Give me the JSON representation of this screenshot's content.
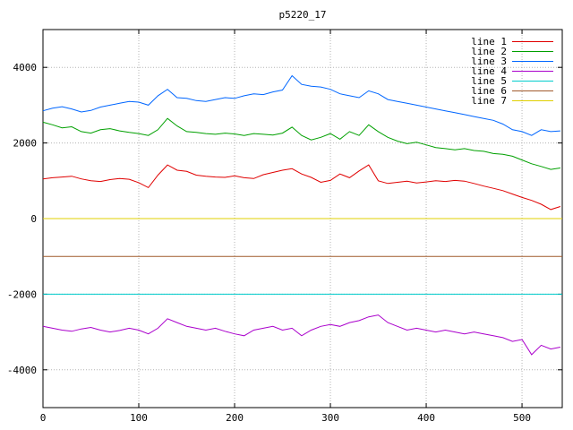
{
  "chart_data": {
    "type": "line",
    "title": "p5220_17",
    "xlabel": "",
    "ylabel": "",
    "xlim": [
      0,
      542
    ],
    "ylim": [
      -5000,
      5000
    ],
    "xticks": [
      0,
      100,
      200,
      300,
      400,
      500
    ],
    "yticks": [
      -4000,
      -2000,
      0,
      2000,
      4000
    ],
    "grid": true,
    "legend_position": "top-right-inside",
    "background_color": "#ffffff",
    "border_color": "#000000",
    "grid_color": "#b4b4b4",
    "x_start": 0,
    "x_step": 10,
    "series": [
      {
        "name": "line 1",
        "color": "#e00000",
        "values": [
          1050,
          1080,
          1100,
          1120,
          1050,
          1000,
          980,
          1030,
          1060,
          1040,
          950,
          820,
          1150,
          1420,
          1280,
          1250,
          1150,
          1120,
          1100,
          1090,
          1130,
          1080,
          1060,
          1160,
          1220,
          1280,
          1320,
          1180,
          1090,
          960,
          1010,
          1180,
          1080,
          1260,
          1420,
          1000,
          930,
          960,
          990,
          940,
          970,
          1000,
          980,
          1010,
          990,
          930,
          860,
          800,
          740,
          650,
          560,
          480,
          380,
          240,
          320
        ]
      },
      {
        "name": "line 2",
        "color": "#00a000",
        "values": [
          2550,
          2480,
          2400,
          2430,
          2300,
          2260,
          2350,
          2380,
          2320,
          2280,
          2250,
          2200,
          2350,
          2650,
          2450,
          2300,
          2280,
          2250,
          2230,
          2260,
          2240,
          2200,
          2250,
          2230,
          2210,
          2260,
          2420,
          2200,
          2080,
          2150,
          2250,
          2100,
          2300,
          2200,
          2480,
          2300,
          2150,
          2050,
          1980,
          2020,
          1950,
          1880,
          1850,
          1820,
          1850,
          1800,
          1780,
          1720,
          1700,
          1650,
          1550,
          1450,
          1380,
          1300,
          1340
        ]
      },
      {
        "name": "line 3",
        "color": "#0066ff",
        "values": [
          2850,
          2920,
          2960,
          2900,
          2820,
          2860,
          2950,
          3000,
          3050,
          3100,
          3080,
          3000,
          3250,
          3420,
          3200,
          3180,
          3120,
          3100,
          3150,
          3200,
          3180,
          3250,
          3300,
          3280,
          3350,
          3400,
          3780,
          3550,
          3500,
          3480,
          3420,
          3300,
          3250,
          3200,
          3380,
          3300,
          3150,
          3100,
          3050,
          3000,
          2950,
          2900,
          2850,
          2800,
          2750,
          2700,
          2650,
          2600,
          2500,
          2350,
          2300,
          2200,
          2350,
          2300,
          2320
        ]
      },
      {
        "name": "line 4",
        "color": "#aa00cc",
        "values": [
          -2850,
          -2900,
          -2950,
          -2980,
          -2920,
          -2880,
          -2950,
          -3000,
          -2960,
          -2900,
          -2950,
          -3050,
          -2900,
          -2650,
          -2750,
          -2850,
          -2900,
          -2950,
          -2900,
          -2980,
          -3050,
          -3100,
          -2950,
          -2900,
          -2850,
          -2950,
          -2900,
          -3100,
          -2950,
          -2850,
          -2800,
          -2850,
          -2750,
          -2700,
          -2600,
          -2550,
          -2750,
          -2850,
          -2950,
          -2900,
          -2950,
          -3000,
          -2950,
          -3000,
          -3050,
          -3000,
          -3050,
          -3100,
          -3150,
          -3250,
          -3200,
          -3600,
          -3350,
          -3450,
          -3400
        ]
      },
      {
        "name": "line 5",
        "color": "#00cccc",
        "constant": -2000
      },
      {
        "name": "line 6",
        "color": "#a05a2c",
        "constant": -1000
      },
      {
        "name": "line 7",
        "color": "#e0d000",
        "constant": 0
      }
    ]
  }
}
